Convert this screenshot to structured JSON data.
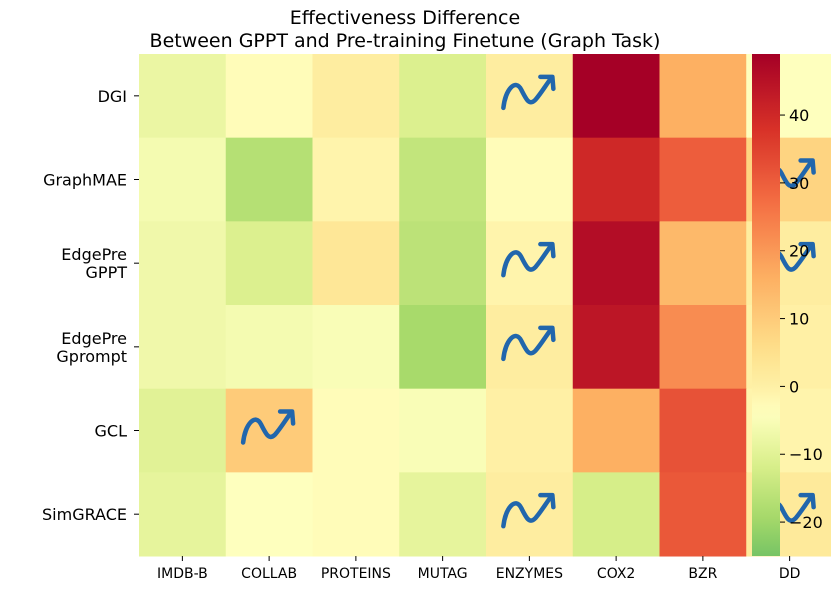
{
  "chart_data": {
    "type": "heatmap",
    "title_line1": "Effectiveness Difference",
    "title_line2": "Between GPPT and Pre-training Finetune (Graph Task)",
    "columns": [
      "IMDB-B",
      "COLLAB",
      "PROTEINS",
      "MUTAG",
      "ENZYMES",
      "COX2",
      "BZR",
      "DD"
    ],
    "rows": [
      [
        "DGI"
      ],
      [
        "GraphMAE"
      ],
      [
        "EdgePre",
        "GPPT"
      ],
      [
        "EdgePre",
        "Gprompt"
      ],
      [
        "GCL"
      ],
      [
        "SimGRACE"
      ]
    ],
    "values": [
      [
        -8,
        -3,
        1,
        -11,
        1,
        49,
        16,
        -4
      ],
      [
        -6,
        -17,
        -1,
        -15,
        -3,
        40,
        30,
        8
      ],
      [
        -7,
        -11,
        3,
        -16,
        -1,
        46,
        14,
        1
      ],
      [
        -7,
        -6,
        -5,
        -19,
        1,
        44,
        22,
        0
      ],
      [
        -10,
        10,
        -3,
        -5,
        0,
        16,
        32,
        -1
      ],
      [
        -9,
        -4,
        -3,
        -9,
        1,
        -12,
        31,
        2
      ]
    ],
    "arrows": [
      [
        0,
        4
      ],
      [
        1,
        7
      ],
      [
        2,
        4
      ],
      [
        2,
        7
      ],
      [
        3,
        4
      ],
      [
        4,
        1
      ],
      [
        5,
        4
      ],
      [
        5,
        7
      ]
    ],
    "colorbar": {
      "min": -25,
      "max": 49,
      "ticks": [
        -20,
        -10,
        0,
        10,
        20,
        30,
        40
      ],
      "tick_labels": [
        "−20",
        "−10",
        "0",
        "10",
        "20",
        "30",
        "40"
      ]
    },
    "colors": {
      "arrow": "#2166ac",
      "colormap": [
        "#1a9850",
        "#66bd63",
        "#a6d96a",
        "#d9ef8b",
        "#ffffbf",
        "#fee08b",
        "#fdae61",
        "#f46d43",
        "#d73027",
        "#a50026"
      ]
    }
  }
}
